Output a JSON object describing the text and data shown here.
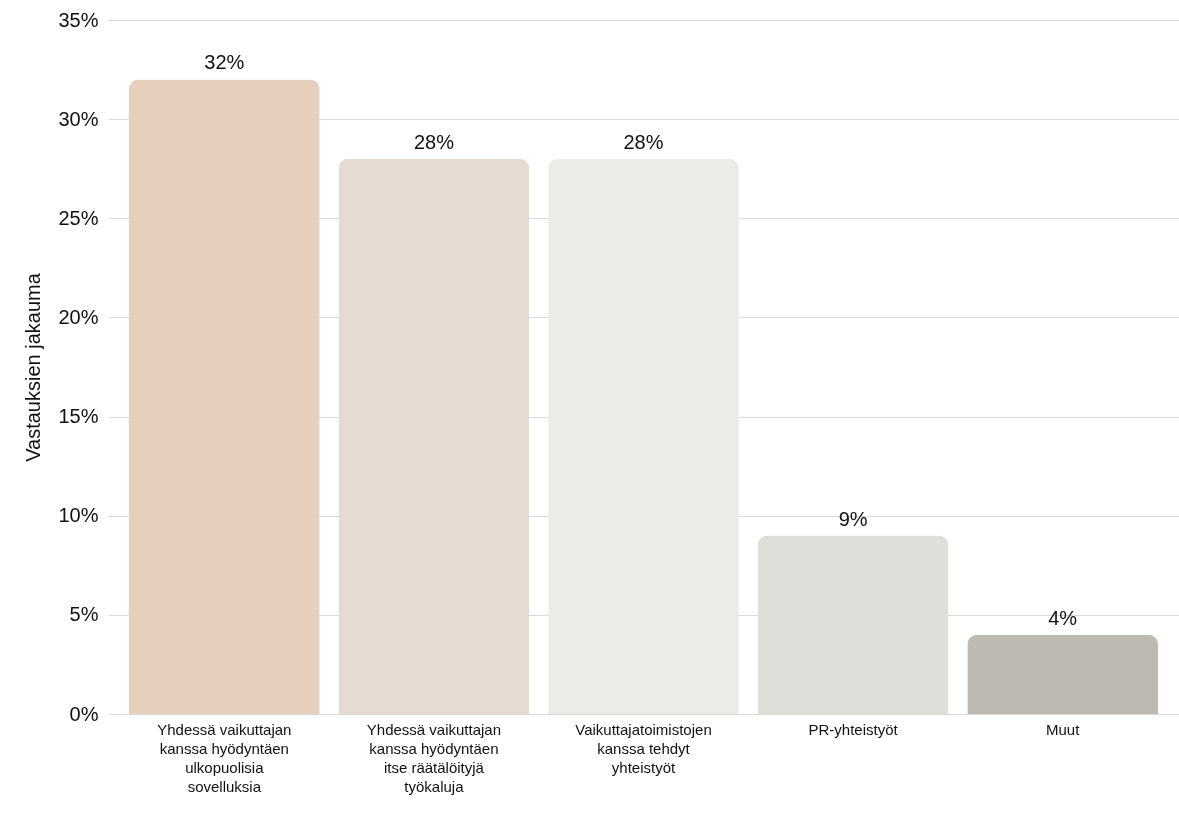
{
  "chart_data": {
    "type": "bar",
    "ylabel": "Vastauksien jakauma",
    "categories": [
      "Yhdessä vaikuttajan kanssa hyödyntäen ulkopuolisia sovelluksia",
      "Yhdessä vaikuttajan kanssa hyödyntäen itse räätälöityjä työkaluja",
      "Vaikuttajatoimistojen kanssa tehdyt yhteistyöt",
      "PR-yhteistyöt",
      "Muut"
    ],
    "values": [
      32,
      28,
      28,
      9,
      4
    ],
    "value_labels": [
      "32%",
      "28%",
      "28%",
      "9%",
      "4%"
    ],
    "colors": [
      "#e5d0bd",
      "#e5dbd3",
      "#edebe8",
      "#dfdfda",
      "#bdbab2"
    ],
    "ylim": [
      0,
      35
    ],
    "yticks": [
      {
        "value": 0,
        "label": "0%"
      },
      {
        "value": 5,
        "label": "5%"
      },
      {
        "value": 10,
        "label": "10%"
      },
      {
        "value": 15,
        "label": "15%"
      },
      {
        "value": 20,
        "label": "20%"
      },
      {
        "value": 25,
        "label": "25%"
      },
      {
        "value": 30,
        "label": "30%"
      },
      {
        "value": 35,
        "label": "35%"
      }
    ],
    "grid": true
  }
}
